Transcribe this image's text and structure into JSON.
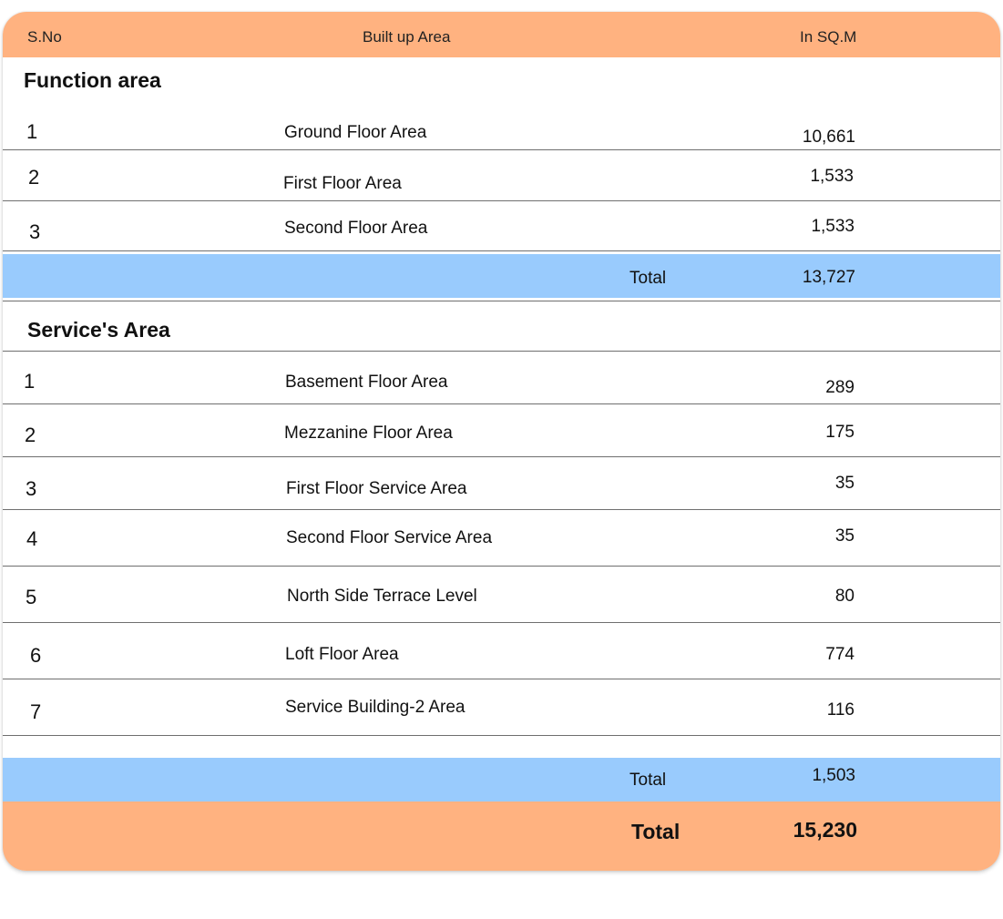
{
  "header": {
    "sno": "S.No",
    "built_up_area": "Built up Area",
    "unit": "In SQ.M"
  },
  "function_area": {
    "title": "Function area",
    "rows": [
      {
        "sno": "1",
        "label": "Ground Floor Area",
        "value": "10,661"
      },
      {
        "sno": "2",
        "label": "First Floor Area",
        "value": "1,533"
      },
      {
        "sno": "3",
        "label": "Second Floor Area",
        "value": "1,533"
      }
    ],
    "total_label": "Total",
    "total_value": "13,727"
  },
  "service_area": {
    "title": "Service's Area",
    "rows": [
      {
        "sno": "1",
        "label": "Basement Floor Area",
        "value": "289"
      },
      {
        "sno": "2",
        "label": "Mezzanine Floor Area",
        "value": "175"
      },
      {
        "sno": "3",
        "label": "First Floor Service Area",
        "value": "35"
      },
      {
        "sno": "4",
        "label": "Second Floor Service Area",
        "value": "35"
      },
      {
        "sno": "5",
        "label": "North Side Terrace Level",
        "value": "80"
      },
      {
        "sno": "6",
        "label": "Loft Floor Area",
        "value": "774"
      },
      {
        "sno": "7",
        "label": "Service Building-2 Area",
        "value": "116"
      }
    ],
    "total_label": "Total",
    "total_value": "1,503"
  },
  "grand_total": {
    "label": "Total",
    "value": "15,230"
  },
  "colors": {
    "header_bg": "#ffb280",
    "subtotal_bg": "#99cbfd",
    "grand_total_bg": "#ffb280"
  }
}
